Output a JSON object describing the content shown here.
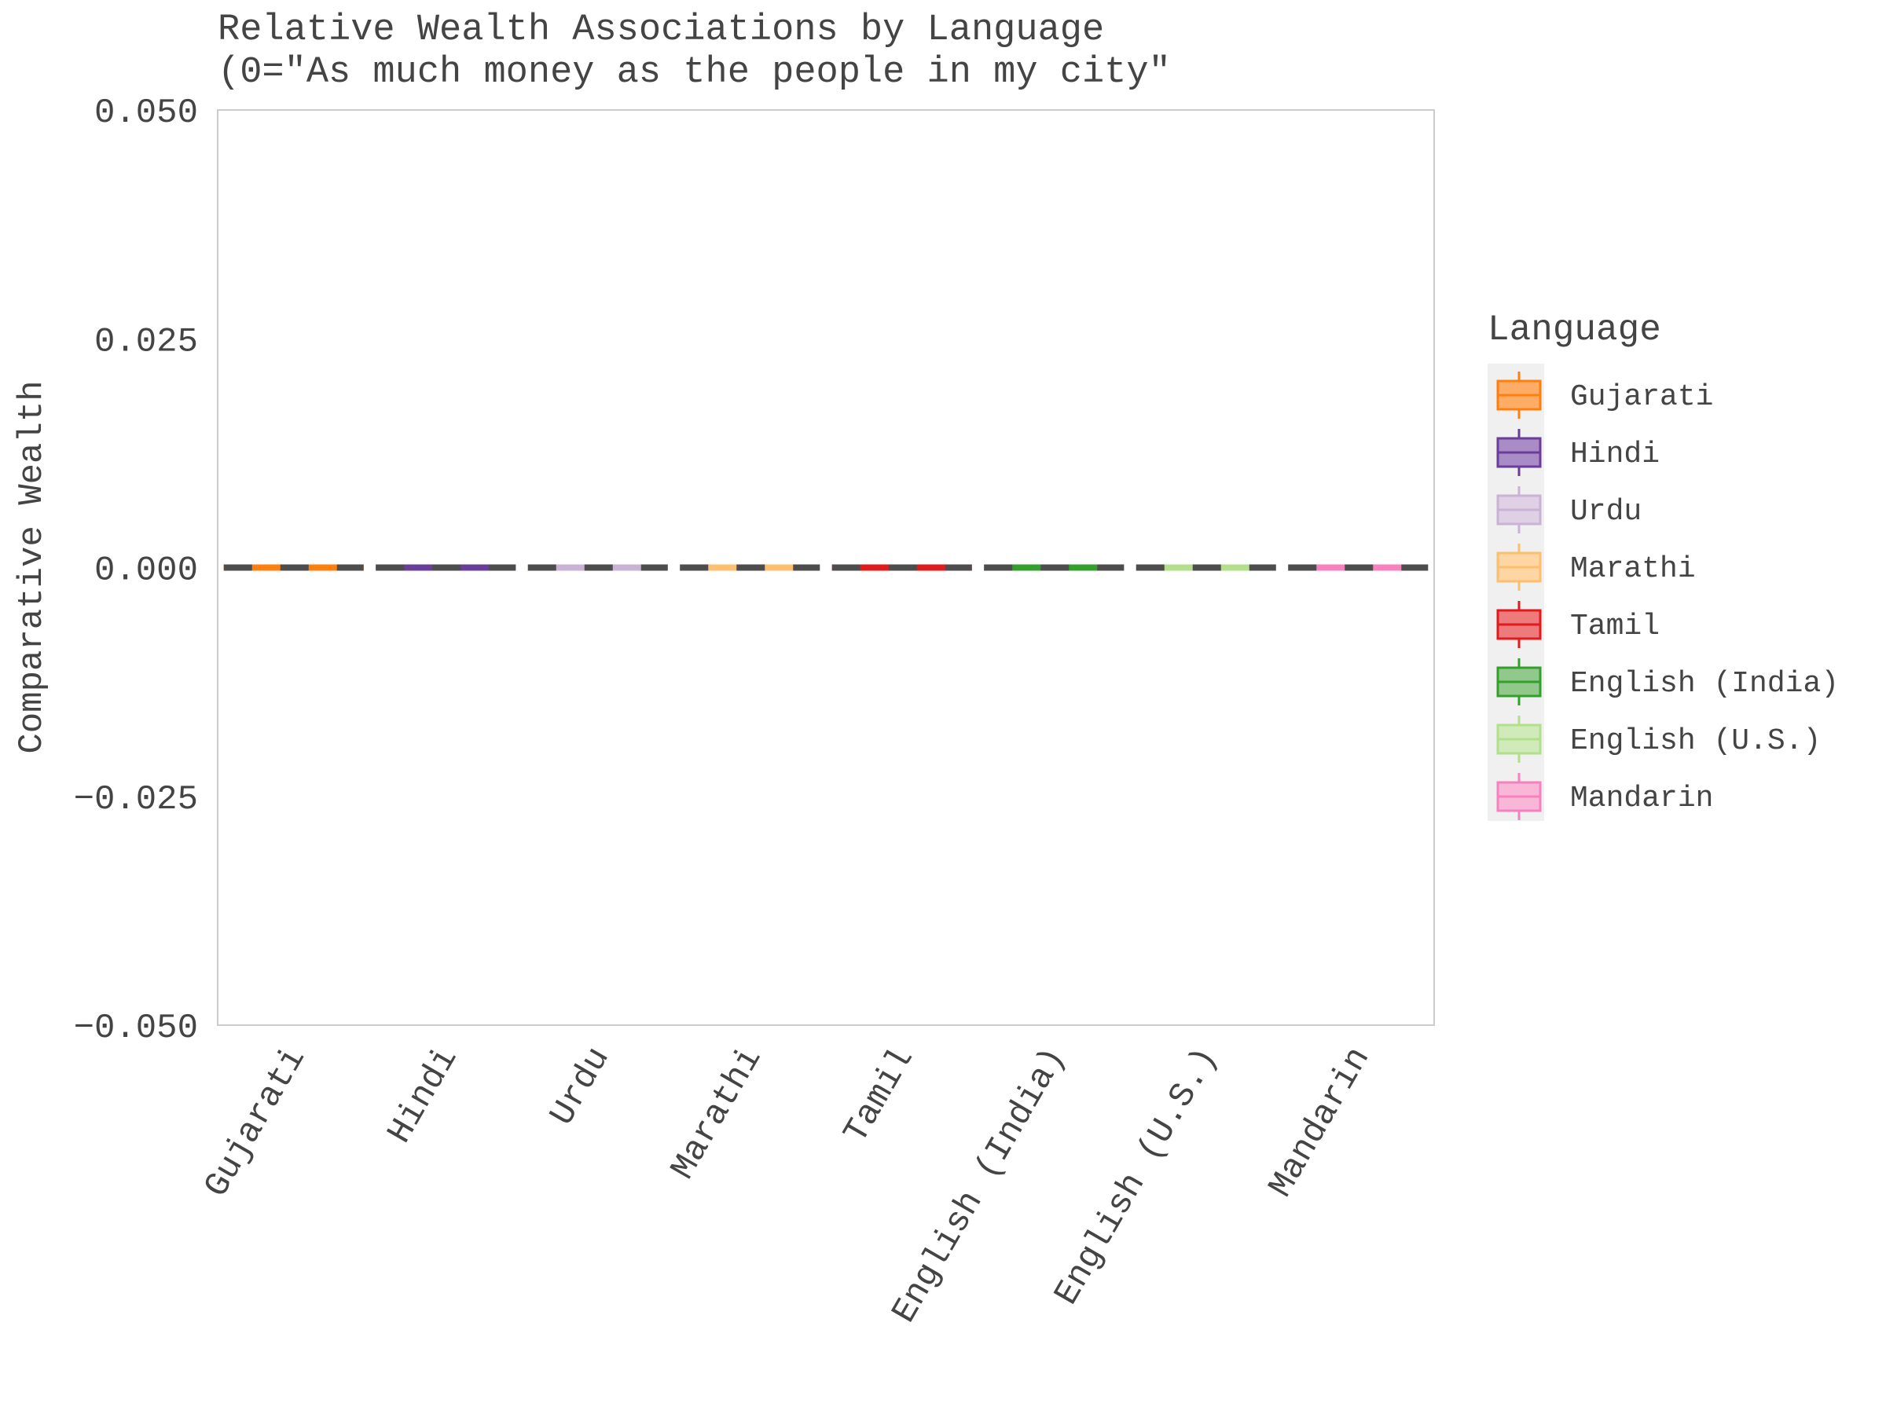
{
  "chart_data": {
    "type": "box",
    "title_lines": [
      "Relative Wealth Associations by Language",
      "(0=\"As much money as the people in my city\""
    ],
    "xlabel": "",
    "ylabel": "Comparative Wealth",
    "ylim": [
      -0.05,
      0.05
    ],
    "yticks": [
      "0.050",
      "0.025",
      "0.000",
      "−0.025",
      "−0.050"
    ],
    "ytick_values": [
      0.05,
      0.025,
      0.0,
      -0.025,
      -0.05
    ],
    "grid": false,
    "legend_position": "right",
    "legend_title": "Language",
    "median_line_color": "#4d4d4d",
    "categories": [
      "Gujarati",
      "Hindi",
      "Urdu",
      "Marathi",
      "Tamil",
      "English (India)",
      "English (U.S.)",
      "Mandarin"
    ],
    "series": [
      {
        "name": "Gujarati",
        "color": "#ff7f0e",
        "fill": "#ffad66",
        "min": 0,
        "q1": 0,
        "median": 0,
        "q3": 0,
        "max": 0
      },
      {
        "name": "Hindi",
        "color": "#6a3d9a",
        "fill": "#a98bc5",
        "min": 0,
        "q1": 0,
        "median": 0,
        "q3": 0,
        "max": 0
      },
      {
        "name": "Urdu",
        "color": "#cab2d6",
        "fill": "#dfd0e6",
        "min": 0,
        "q1": 0,
        "median": 0,
        "q3": 0,
        "max": 0
      },
      {
        "name": "Marathi",
        "color": "#fdbf6f",
        "fill": "#fdd6a3",
        "min": 0,
        "q1": 0,
        "median": 0,
        "q3": 0,
        "max": 0
      },
      {
        "name": "Tamil",
        "color": "#e31a1c",
        "fill": "#ee7b7c",
        "min": 0,
        "q1": 0,
        "median": 0,
        "q3": 0,
        "max": 0
      },
      {
        "name": "English (India)",
        "color": "#33a02c",
        "fill": "#90c98b",
        "min": 0,
        "q1": 0,
        "median": 0,
        "q3": 0,
        "max": 0
      },
      {
        "name": "English (U.S.)",
        "color": "#b2df8a",
        "fill": "#d0ebb9",
        "min": 0,
        "q1": 0,
        "median": 0,
        "q3": 0,
        "max": 0
      },
      {
        "name": "Mandarin",
        "color": "#f781bf",
        "fill": "#f9b7d8",
        "min": 0,
        "q1": 0,
        "median": 0,
        "q3": 0,
        "max": 0
      }
    ]
  }
}
